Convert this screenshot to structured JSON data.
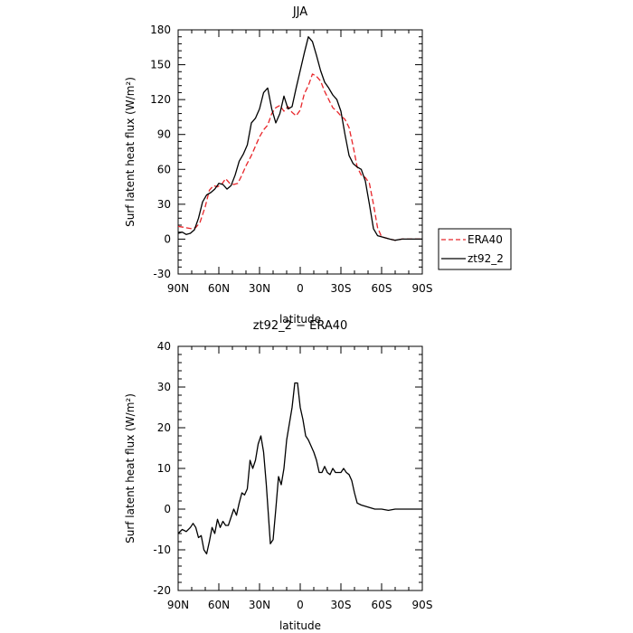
{
  "chart_data": [
    {
      "type": "line",
      "title": "JJA",
      "xlabel": "latitude",
      "ylabel": "Surf latent heat flux (W/m²)",
      "xlim": [
        90,
        -90
      ],
      "ylim": [
        -30,
        180
      ],
      "xticks": [
        90,
        60,
        30,
        0,
        -30,
        -60,
        -90
      ],
      "xtick_labels": [
        "90N",
        "60N",
        "30N",
        "0",
        "30S",
        "60S",
        "90S"
      ],
      "yticks": [
        -30,
        0,
        30,
        60,
        90,
        120,
        150,
        180
      ],
      "ytick_labels": [
        "-30",
        "0",
        "30",
        "60",
        "90",
        "120",
        "150",
        "180"
      ],
      "legend_position": "right",
      "series": [
        {
          "name": "ERA40",
          "color": "#e8262a",
          "dash": "dashed",
          "points": [
            [
              90,
              11
            ],
            [
              85,
              10
            ],
            [
              80,
              9
            ],
            [
              77,
              10
            ],
            [
              74,
              14
            ],
            [
              70,
              28
            ],
            [
              67,
              42
            ],
            [
              64,
              46
            ],
            [
              61,
              45
            ],
            [
              58,
              47
            ],
            [
              55,
              52
            ],
            [
              52,
              48
            ],
            [
              49,
              47
            ],
            [
              46,
              48
            ],
            [
              43,
              55
            ],
            [
              40,
              63
            ],
            [
              36,
              72
            ],
            [
              33,
              80
            ],
            [
              30,
              88
            ],
            [
              27,
              94
            ],
            [
              24,
              98
            ],
            [
              21,
              108
            ],
            [
              18,
              113
            ],
            [
              15,
              115
            ],
            [
              12,
              110
            ],
            [
              9,
              114
            ],
            [
              6,
              109
            ],
            [
              3,
              106
            ],
            [
              0,
              111
            ],
            [
              -3,
              125
            ],
            [
              -6,
              132
            ],
            [
              -9,
              142
            ],
            [
              -12,
              140
            ],
            [
              -15,
              136
            ],
            [
              -18,
              127
            ],
            [
              -21,
              120
            ],
            [
              -24,
              113
            ],
            [
              -27,
              110
            ],
            [
              -30,
              106
            ],
            [
              -33,
              103
            ],
            [
              -36,
              96
            ],
            [
              -39,
              80
            ],
            [
              -42,
              62
            ],
            [
              -45,
              55
            ],
            [
              -48,
              53
            ],
            [
              -51,
              48
            ],
            [
              -54,
              30
            ],
            [
              -57,
              10
            ],
            [
              -60,
              2
            ],
            [
              -63,
              1
            ],
            [
              -66,
              0
            ],
            [
              -70,
              -1
            ],
            [
              -75,
              0
            ],
            [
              -80,
              0
            ],
            [
              -85,
              0
            ],
            [
              -90,
              0
            ]
          ]
        },
        {
          "name": "zt92_2",
          "color": "#000000",
          "dash": "solid",
          "points": [
            [
              90,
              5
            ],
            [
              87,
              6
            ],
            [
              84,
              4
            ],
            [
              81,
              5
            ],
            [
              78,
              8
            ],
            [
              75,
              18
            ],
            [
              72,
              32
            ],
            [
              69,
              38
            ],
            [
              66,
              40
            ],
            [
              63,
              43
            ],
            [
              60,
              48
            ],
            [
              57,
              47
            ],
            [
              54,
              43
            ],
            [
              51,
              46
            ],
            [
              48,
              55
            ],
            [
              45,
              67
            ],
            [
              42,
              73
            ],
            [
              39,
              81
            ],
            [
              36,
              100
            ],
            [
              33,
              104
            ],
            [
              30,
              112
            ],
            [
              27,
              126
            ],
            [
              24,
              130
            ],
            [
              21,
              112
            ],
            [
              18,
              100
            ],
            [
              15,
              108
            ],
            [
              12,
              123
            ],
            [
              9,
              112
            ],
            [
              6,
              114
            ],
            [
              3,
              130
            ],
            [
              0,
              145
            ],
            [
              -3,
              160
            ],
            [
              -6,
              174
            ],
            [
              -9,
              170
            ],
            [
              -12,
              158
            ],
            [
              -15,
              145
            ],
            [
              -18,
              135
            ],
            [
              -21,
              130
            ],
            [
              -24,
              124
            ],
            [
              -27,
              120
            ],
            [
              -30,
              110
            ],
            [
              -33,
              90
            ],
            [
              -36,
              72
            ],
            [
              -39,
              65
            ],
            [
              -42,
              62
            ],
            [
              -45,
              60
            ],
            [
              -48,
              50
            ],
            [
              -51,
              30
            ],
            [
              -54,
              9
            ],
            [
              -57,
              3
            ],
            [
              -60,
              2
            ],
            [
              -63,
              1
            ],
            [
              -66,
              0
            ],
            [
              -70,
              -1
            ],
            [
              -75,
              0
            ],
            [
              -80,
              0
            ],
            [
              -85,
              0
            ],
            [
              -90,
              0
            ]
          ]
        }
      ]
    },
    {
      "type": "line",
      "title": "zt92_2 − ERA40",
      "xlabel": "latitude",
      "ylabel": "Surf latent heat flux (W/m²)",
      "xlim": [
        90,
        -90
      ],
      "ylim": [
        -20,
        40
      ],
      "xticks": [
        90,
        60,
        30,
        0,
        -30,
        -60,
        -90
      ],
      "xtick_labels": [
        "90N",
        "60N",
        "30N",
        "0",
        "30S",
        "60S",
        "90S"
      ],
      "yticks": [
        -20,
        -10,
        0,
        10,
        20,
        30,
        40
      ],
      "ytick_labels": [
        "-20",
        "-10",
        "0",
        "10",
        "20",
        "30",
        "40"
      ],
      "series": [
        {
          "color": "#000000",
          "dash": "solid",
          "points": [
            [
              90,
              -6
            ],
            [
              87,
              -5
            ],
            [
              84,
              -5.5
            ],
            [
              81,
              -4.5
            ],
            [
              79,
              -3.5
            ],
            [
              77,
              -4.5
            ],
            [
              75,
              -7
            ],
            [
              73,
              -6.5
            ],
            [
              71,
              -10
            ],
            [
              69,
              -11
            ],
            [
              67,
              -8
            ],
            [
              65,
              -4.5
            ],
            [
              63,
              -6
            ],
            [
              61,
              -2.5
            ],
            [
              59,
              -4.5
            ],
            [
              57,
              -3
            ],
            [
              55,
              -4
            ],
            [
              53,
              -4
            ],
            [
              51,
              -2
            ],
            [
              49,
              0
            ],
            [
              47,
              -1.5
            ],
            [
              45,
              1.5
            ],
            [
              43,
              4
            ],
            [
              41,
              3.5
            ],
            [
              39,
              5
            ],
            [
              37,
              12
            ],
            [
              35,
              10
            ],
            [
              33,
              12
            ],
            [
              31,
              16
            ],
            [
              29,
              18
            ],
            [
              27,
              14
            ],
            [
              25,
              6
            ],
            [
              22,
              -8.5
            ],
            [
              20,
              -7.5
            ],
            [
              18,
              0
            ],
            [
              16,
              8
            ],
            [
              14,
              6
            ],
            [
              12,
              10
            ],
            [
              10,
              17
            ],
            [
              8,
              21
            ],
            [
              6,
              25
            ],
            [
              4,
              31
            ],
            [
              2,
              31
            ],
            [
              0,
              25
            ],
            [
              -2,
              22
            ],
            [
              -4,
              18
            ],
            [
              -6,
              17
            ],
            [
              -8,
              15.5
            ],
            [
              -10,
              14
            ],
            [
              -12,
              12
            ],
            [
              -14,
              9
            ],
            [
              -16,
              9
            ],
            [
              -18,
              10.5
            ],
            [
              -20,
              9
            ],
            [
              -22,
              8.5
            ],
            [
              -24,
              10
            ],
            [
              -26,
              9
            ],
            [
              -28,
              9
            ],
            [
              -30,
              9
            ],
            [
              -32,
              10
            ],
            [
              -34,
              9
            ],
            [
              -36,
              8.5
            ],
            [
              -38,
              7
            ],
            [
              -40,
              4
            ],
            [
              -42,
              1.5
            ],
            [
              -45,
              1
            ],
            [
              -50,
              0.5
            ],
            [
              -55,
              0
            ],
            [
              -60,
              0
            ],
            [
              -65,
              -0.3
            ],
            [
              -70,
              0
            ],
            [
              -75,
              0
            ],
            [
              -80,
              0
            ],
            [
              -85,
              0
            ],
            [
              -90,
              0
            ]
          ]
        }
      ]
    }
  ],
  "legend": {
    "items": [
      {
        "label": "ERA40"
      },
      {
        "label": "zt92_2"
      }
    ]
  }
}
